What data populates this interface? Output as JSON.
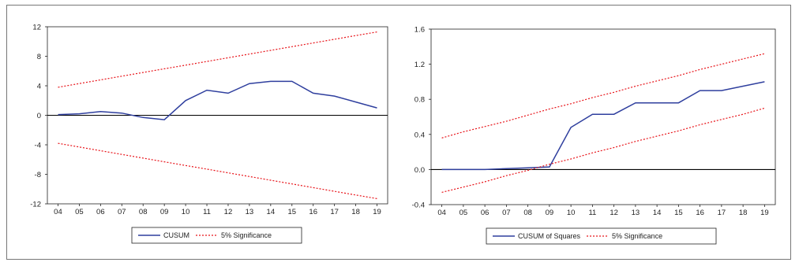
{
  "colors": {
    "series": "#2f3f9e",
    "bounds": "#e8141a",
    "axis": "#000000",
    "frame": "#777777"
  },
  "chart_data": [
    {
      "type": "line",
      "title": "",
      "xlabel": "",
      "ylabel": "",
      "x": [
        "04",
        "05",
        "06",
        "07",
        "08",
        "09",
        "10",
        "11",
        "12",
        "13",
        "14",
        "15",
        "16",
        "17",
        "18",
        "19"
      ],
      "ylim": [
        -12,
        12
      ],
      "yticks": [
        "12",
        "8",
        "4",
        "0",
        "-4",
        "-8",
        "-12"
      ],
      "ytick_values": [
        12,
        8,
        4,
        0,
        -4,
        -8,
        -12
      ],
      "grid": false,
      "legend_position": "bottom-center",
      "series": [
        {
          "name": "CUSUM",
          "style": "solid",
          "values": [
            0.1,
            0.2,
            0.5,
            0.3,
            -0.3,
            -0.6,
            2.0,
            3.4,
            3.0,
            4.3,
            4.6,
            4.6,
            3.0,
            2.6,
            1.8,
            1.0
          ]
        },
        {
          "name": "5% Significance",
          "style": "dotted",
          "values": [
            3.8,
            4.3,
            4.8,
            5.3,
            5.8,
            6.3,
            6.8,
            7.3,
            7.8,
            8.3,
            8.8,
            9.3,
            9.8,
            10.3,
            10.8,
            11.3
          ]
        },
        {
          "name": "",
          "style": "dotted",
          "values": [
            -3.8,
            -4.3,
            -4.8,
            -5.3,
            -5.8,
            -6.3,
            -6.8,
            -7.3,
            -7.8,
            -8.3,
            -8.8,
            -9.3,
            -9.8,
            -10.3,
            -10.8,
            -11.3
          ]
        }
      ]
    },
    {
      "type": "line",
      "title": "",
      "xlabel": "",
      "ylabel": "",
      "x": [
        "04",
        "05",
        "06",
        "07",
        "08",
        "09",
        "10",
        "11",
        "12",
        "13",
        "14",
        "15",
        "16",
        "17",
        "18",
        "19"
      ],
      "ylim": [
        -0.4,
        1.6
      ],
      "yticks": [
        "1.6",
        "1.2",
        "0.8",
        "0.4",
        "0.0",
        "-0.4"
      ],
      "ytick_values": [
        1.6,
        1.2,
        0.8,
        0.4,
        0.0,
        -0.4
      ],
      "grid": false,
      "legend_position": "bottom-center",
      "series": [
        {
          "name": "CUSUM of Squares",
          "style": "solid",
          "values": [
            0.0,
            0.0,
            0.0,
            0.01,
            0.02,
            0.03,
            0.48,
            0.63,
            0.63,
            0.76,
            0.76,
            0.76,
            0.9,
            0.9,
            0.95,
            1.0
          ]
        },
        {
          "name": "5% Significance",
          "style": "dotted",
          "values": [
            0.36,
            0.43,
            0.49,
            0.55,
            0.62,
            0.69,
            0.75,
            0.82,
            0.88,
            0.95,
            1.01,
            1.07,
            1.14,
            1.2,
            1.26,
            1.32
          ]
        },
        {
          "name": "",
          "style": "dotted",
          "values": [
            -0.26,
            -0.2,
            -0.14,
            -0.07,
            -0.01,
            0.06,
            0.12,
            0.19,
            0.25,
            0.32,
            0.38,
            0.44,
            0.51,
            0.57,
            0.63,
            0.7
          ]
        }
      ]
    }
  ]
}
